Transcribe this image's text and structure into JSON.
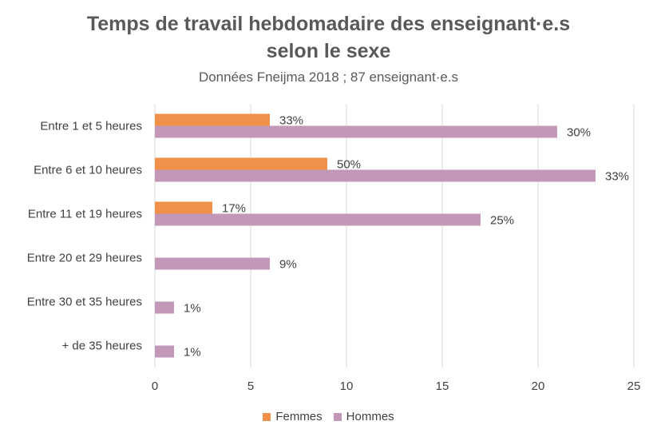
{
  "title_line1": "Temps de travail hebdomadaire des enseignant·e.s",
  "title_line2": "selon le sexe",
  "subtitle": "Données Fneijma 2018 ; 87 enseignant·e.s",
  "colors": {
    "femmes": "#F0914A",
    "hommes": "#C397B7",
    "grid": "#d9d9d9",
    "text": "#404040"
  },
  "chart_data": {
    "type": "bar",
    "orientation": "horizontal",
    "categories": [
      "Entre 1 et 5 heures",
      "Entre 6 et 10 heures",
      "Entre 11 et 19 heures",
      "Entre 20 et 29 heures",
      "Entre 30 et 35 heures",
      "+ de 35 heures"
    ],
    "series": [
      {
        "name": "Femmes",
        "values": [
          6,
          9,
          3,
          0,
          0,
          0
        ],
        "labels": [
          "33%",
          "50%",
          "17%",
          null,
          null,
          null
        ]
      },
      {
        "name": "Hommes",
        "values": [
          21,
          23,
          17,
          6,
          1,
          1
        ],
        "labels": [
          "30%",
          "33%",
          "25%",
          "9%",
          "1%",
          "1%"
        ]
      }
    ],
    "xlim": [
      0,
      25
    ],
    "xticks": [
      "0",
      "5",
      "10",
      "15",
      "20",
      "25"
    ],
    "legend_position": "bottom",
    "grid": true
  }
}
